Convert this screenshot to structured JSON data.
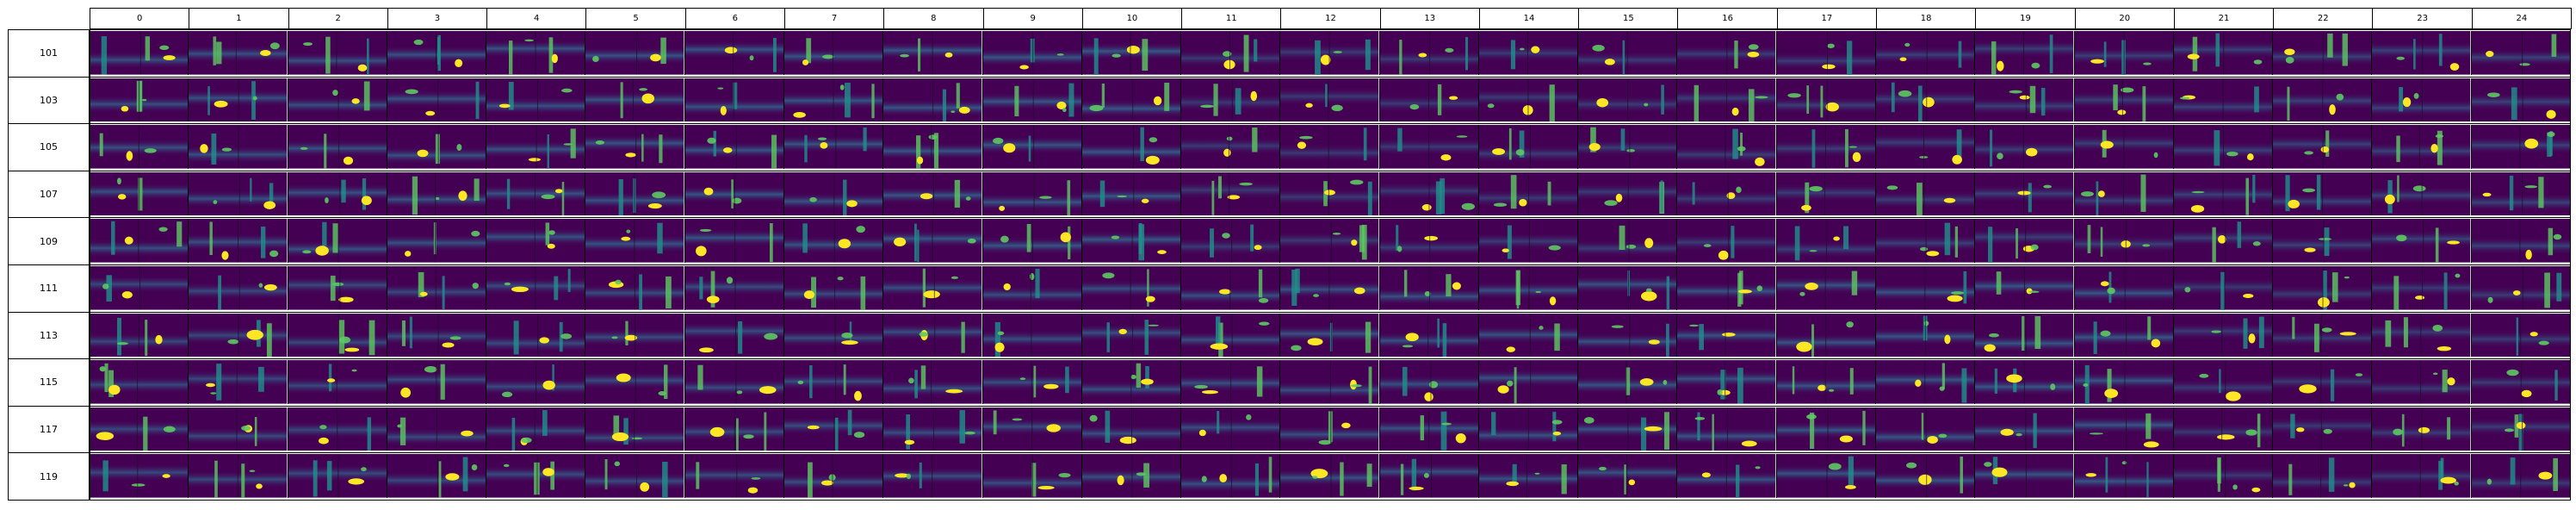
{
  "grid": {
    "columns": [
      "0",
      "1",
      "2",
      "3",
      "4",
      "5",
      "6",
      "7",
      "8",
      "9",
      "10",
      "11",
      "12",
      "13",
      "14",
      "15",
      "16",
      "17",
      "18",
      "19",
      "20",
      "21",
      "22",
      "23",
      "24"
    ],
    "rows": [
      "101",
      "103",
      "105",
      "107",
      "109",
      "111",
      "113",
      "115",
      "117",
      "119"
    ]
  },
  "colors": {
    "background": "#440154",
    "mid": "#31688e",
    "teal": "#21918c",
    "green": "#5ec962",
    "yellow": "#fde725",
    "border": "#000000"
  }
}
